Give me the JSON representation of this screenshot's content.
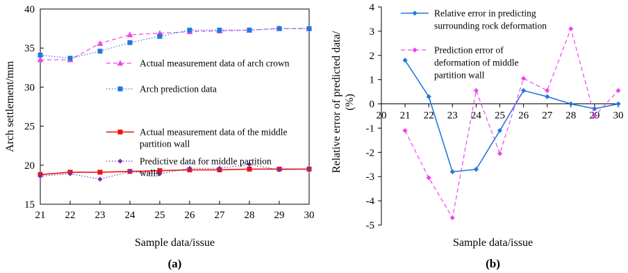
{
  "chart_data": [
    {
      "type": "line",
      "panel_label": "(a)",
      "xlabel": "Sample data/issue",
      "ylabel": "Arch settlement/mm",
      "x": [
        21,
        22,
        23,
        24,
        25,
        26,
        27,
        28,
        29,
        30
      ],
      "xlim": [
        21,
        30
      ],
      "ylim": [
        15,
        40
      ],
      "yticks": [
        15,
        20,
        25,
        30,
        35,
        40
      ],
      "grid": false,
      "legend_position": "right",
      "series": [
        {
          "name": "Actual measurement data of arch crown",
          "color": "#ee44ee",
          "line": "dashed",
          "marker": "triangle",
          "values": [
            33.5,
            33.5,
            35.6,
            36.7,
            36.9,
            37.1,
            37.2,
            37.3,
            37.5,
            37.5
          ]
        },
        {
          "name": "Arch prediction data",
          "color": "#2277dd",
          "line": "dotted",
          "marker": "square",
          "values": [
            34.1,
            33.7,
            34.6,
            35.7,
            36.5,
            37.3,
            37.3,
            37.3,
            37.5,
            37.5
          ]
        },
        {
          "name": "Actual measurement data of the middle partition wall",
          "color": "#ee1111",
          "line": "solid",
          "marker": "square",
          "values": [
            18.8,
            19.1,
            19.1,
            19.2,
            19.3,
            19.4,
            19.4,
            19.5,
            19.5,
            19.5
          ]
        },
        {
          "name": "Predictive data for middle partition walls",
          "color": "#7733aa",
          "line": "dotted",
          "marker": "diamond",
          "values": [
            18.6,
            18.9,
            18.2,
            19.2,
            18.9,
            19.6,
            19.6,
            20.1,
            19.4,
            19.5
          ]
        }
      ]
    },
    {
      "type": "line",
      "panel_label": "(b)",
      "xlabel": "Sample data/issue",
      "ylabel_line1": "Relative error of predicted data/",
      "ylabel_line2": "(%)",
      "x": [
        21,
        22,
        23,
        24,
        25,
        26,
        27,
        28,
        29,
        30
      ],
      "xlim": [
        20,
        30
      ],
      "xticks": [
        20,
        21,
        22,
        23,
        24,
        25,
        26,
        27,
        28,
        29,
        30
      ],
      "ylim": [
        -5,
        4
      ],
      "yticks": [
        -5,
        -4,
        -3,
        -2,
        -1,
        0,
        1,
        2,
        3,
        4
      ],
      "grid": false,
      "legend_position": "top",
      "series": [
        {
          "name": "Relative error in predicting surrounding rock deformation",
          "color": "#2277dd",
          "line": "solid",
          "marker": "diamond",
          "values": [
            1.8,
            0.3,
            -2.8,
            -2.7,
            -1.1,
            0.55,
            0.3,
            0.0,
            -0.2,
            0.0
          ]
        },
        {
          "name": "Prediction error of deformation of middle partition wall",
          "color": "#ee44ee",
          "line": "dashed",
          "marker": "diamond",
          "values": [
            -1.1,
            -3.05,
            -4.7,
            0.55,
            -2.05,
            1.05,
            0.55,
            3.1,
            -0.5,
            0.55
          ]
        }
      ]
    }
  ]
}
